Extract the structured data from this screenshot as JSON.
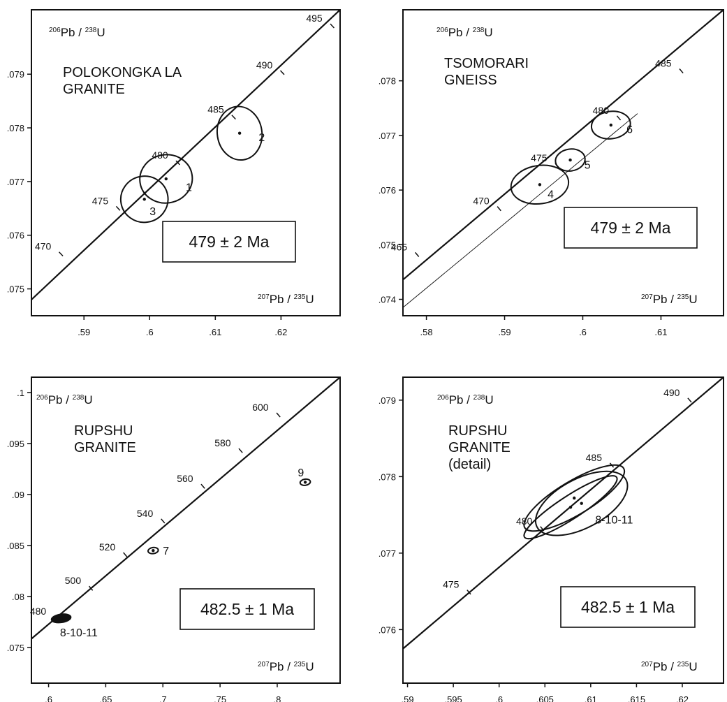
{
  "chart_data": [
    {
      "type": "scatter",
      "subtype": "concordia-diagram",
      "title": "POLOKONGKA LA\nGRANITE",
      "result_box": "479 ± 2 Ma",
      "xlabel": "207Pb / 235U",
      "ylabel": "206Pb / 238U",
      "xlim": [
        0.582,
        0.629
      ],
      "ylim": [
        0.0745,
        0.0802
      ],
      "x_ticks": [
        0.59,
        0.6,
        0.61,
        0.62
      ],
      "x_tick_labels": [
        ".59",
        ".6",
        ".61",
        ".62"
      ],
      "y_ticks": [
        0.075,
        0.076,
        0.077,
        0.078,
        0.079
      ],
      "y_tick_labels": [
        ".075",
        ".076",
        ".077",
        ".078",
        ".079"
      ],
      "concordia": {
        "from": [
          0.582,
          0.0748
        ],
        "to": [
          0.629,
          0.0802
        ]
      },
      "age_marks": [
        {
          "label": "470",
          "x": 0.5865,
          "y": 0.07565
        },
        {
          "label": "475",
          "x": 0.5952,
          "y": 0.0765
        },
        {
          "label": "480",
          "x": 0.6043,
          "y": 0.07735
        },
        {
          "label": "485",
          "x": 0.6128,
          "y": 0.0782
        },
        {
          "label": "490",
          "x": 0.6202,
          "y": 0.07903
        },
        {
          "label": "495",
          "x": 0.6278,
          "y": 0.0799
        }
      ],
      "points": [
        {
          "label": "1",
          "x": 0.6025,
          "y": 0.07705,
          "rx": 0.004,
          "ry": 0.00045,
          "label_x": 0.6055,
          "label_y": 0.0769
        },
        {
          "label": "2",
          "x": 0.6137,
          "y": 0.0779,
          "rx": 0.0034,
          "ry": 0.0005,
          "label_x": 0.6166,
          "label_y": 0.07783
        },
        {
          "label": "3",
          "x": 0.5992,
          "y": 0.07667,
          "rx": 0.0036,
          "ry": 0.00043,
          "label_x": 0.6,
          "label_y": 0.07645
        }
      ]
    },
    {
      "type": "scatter",
      "subtype": "concordia-diagram",
      "title": "TSOMORARI\nGNEISS",
      "result_box": "479 ± 2 Ma",
      "xlabel": "207Pb / 235U",
      "ylabel": "206Pb / 238U",
      "xlim": [
        0.577,
        0.618
      ],
      "ylim": [
        0.0737,
        0.0793
      ],
      "x_ticks": [
        0.58,
        0.59,
        0.6,
        0.61
      ],
      "x_tick_labels": [
        ".58",
        ".59",
        ".6",
        ".61"
      ],
      "y_ticks": [
        0.074,
        0.075,
        0.076,
        0.077,
        0.078
      ],
      "y_tick_labels": [
        ".074",
        ".075",
        ".076",
        ".077",
        ".078"
      ],
      "concordia": {
        "from": [
          0.577,
          0.07436
        ],
        "to": [
          0.618,
          0.0793
        ]
      },
      "discordia": {
        "from": [
          0.577,
          0.07385
        ],
        "to": [
          0.607,
          0.0774
        ]
      },
      "age_marks": [
        {
          "label": "465",
          "x": 0.5788,
          "y": 0.07482
        },
        {
          "label": "470",
          "x": 0.5893,
          "y": 0.07566
        },
        {
          "label": "475",
          "x": 0.5967,
          "y": 0.07645
        },
        {
          "label": "480",
          "x": 0.6046,
          "y": 0.07732
        },
        {
          "label": "485",
          "x": 0.6126,
          "y": 0.07818
        }
      ],
      "points": [
        {
          "label": "4",
          "x": 0.5945,
          "y": 0.0761,
          "rx": 0.0037,
          "ry": 0.00035,
          "label_x": 0.5955,
          "label_y": 0.07593
        },
        {
          "label": "5",
          "x": 0.5984,
          "y": 0.07655,
          "rx": 0.0019,
          "ry": 0.0002,
          "label_x": 0.6002,
          "label_y": 0.07647
        },
        {
          "label": "6",
          "x": 0.6036,
          "y": 0.07719,
          "rx": 0.0025,
          "ry": 0.00025,
          "label_x": 0.6056,
          "label_y": 0.07712
        }
      ]
    },
    {
      "type": "scatter",
      "subtype": "concordia-diagram",
      "title": "RUPSHU\nGRANITE",
      "result_box": "482.5 ± 1 Ma",
      "xlabel": "207Pb / 235U",
      "ylabel": "206Pb / 238U",
      "xlim": [
        0.585,
        0.855
      ],
      "ylim": [
        0.0715,
        0.1015
      ],
      "x_ticks": [
        0.6,
        0.65,
        0.7,
        0.75,
        0.8
      ],
      "x_tick_labels": [
        ".6",
        ".65",
        ".7",
        ".75",
        ".8"
      ],
      "y_ticks": [
        0.075,
        0.08,
        0.085,
        0.09,
        0.095,
        0.1
      ],
      "y_tick_labels": [
        ".075",
        ".08",
        ".085",
        ".09",
        ".095",
        ".1"
      ],
      "concordia": {
        "from": [
          0.585,
          0.07585
        ],
        "to": [
          0.855,
          0.1015
        ]
      },
      "age_marks": [
        {
          "label": "480",
          "x": 0.6065,
          "y": 0.0778
        },
        {
          "label": "500",
          "x": 0.637,
          "y": 0.0808
        },
        {
          "label": "520",
          "x": 0.667,
          "y": 0.0841
        },
        {
          "label": "540",
          "x": 0.7,
          "y": 0.0874
        },
        {
          "label": "560",
          "x": 0.735,
          "y": 0.0908
        },
        {
          "label": "580",
          "x": 0.768,
          "y": 0.0943
        },
        {
          "label": "600",
          "x": 0.801,
          "y": 0.0978
        }
      ],
      "points": [
        {
          "label": "8-10-11",
          "x": 0.611,
          "y": 0.07785,
          "rx": 0.0085,
          "ry": 0.0004,
          "filled": true,
          "label_x": 0.61,
          "label_y": 0.0765
        },
        {
          "label": "7",
          "x": 0.6915,
          "y": 0.0845,
          "rx": 0.0045,
          "ry": 0.0003,
          "label_x": 0.7,
          "label_y": 0.0845
        },
        {
          "label": "9",
          "x": 0.8245,
          "y": 0.0912,
          "rx": 0.0045,
          "ry": 0.0003,
          "label_x": 0.818,
          "label_y": 0.0922
        }
      ]
    },
    {
      "type": "scatter",
      "subtype": "concordia-diagram",
      "title": "RUPSHU\nGRANITE\n(detail)",
      "result_box": "482.5 ± 1 Ma",
      "xlabel": "207Pb / 235U",
      "ylabel": "206Pb / 238U",
      "xlim": [
        0.5895,
        0.6245
      ],
      "ylim": [
        0.0753,
        0.0793
      ],
      "x_ticks": [
        0.59,
        0.595,
        0.6,
        0.605,
        0.61,
        0.615,
        0.62
      ],
      "x_tick_labels": [
        ".59",
        ".595",
        ".6",
        ".605",
        ".61",
        ".615",
        ".62"
      ],
      "y_ticks": [
        0.076,
        0.077,
        0.078,
        0.079
      ],
      "y_tick_labels": [
        ".076",
        ".077",
        ".078",
        ".079"
      ],
      "concordia": {
        "from": [
          0.5895,
          0.07575
        ],
        "to": [
          0.6245,
          0.0793
        ]
      },
      "age_marks": [
        {
          "label": "475",
          "x": 0.5967,
          "y": 0.07649
        },
        {
          "label": "480",
          "x": 0.6047,
          "y": 0.07732
        },
        {
          "label": "485",
          "x": 0.6123,
          "y": 0.07815
        },
        {
          "label": "490",
          "x": 0.6208,
          "y": 0.079
        }
      ],
      "points": [
        {
          "label": "",
          "x": 0.6082,
          "y": 0.07772,
          "rx": 0.0063,
          "ry": 0.00022,
          "angle": -31
        },
        {
          "label": "",
          "x": 0.609,
          "y": 0.07765,
          "rx": 0.0055,
          "ry": 0.00032,
          "angle": -28
        },
        {
          "label": "",
          "x": 0.6078,
          "y": 0.0776,
          "rx": 0.006,
          "ry": 0.00015,
          "angle": -33
        }
      ],
      "point_group_label": {
        "label": "8-10-11",
        "x": 0.6105,
        "y": 0.07744
      }
    }
  ]
}
